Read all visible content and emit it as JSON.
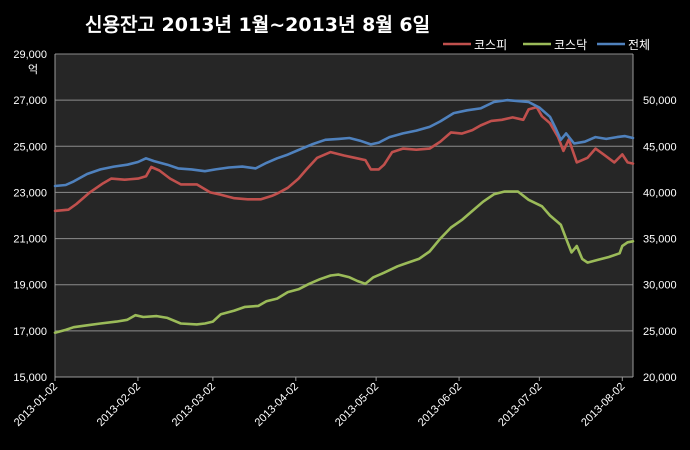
{
  "chart_data": {
    "type": "line",
    "title": "신용잔고 2013년 1월~2013년 8월 6일",
    "y_left_unit": "억",
    "x_tick_labels": [
      "2013-01-02",
      "2013-02-02",
      "2013-03-02",
      "2013-04-02",
      "2013-05-02",
      "2013-06-02",
      "2013-07-02",
      "2013-08-02"
    ],
    "x_range": [
      "2013-01-02",
      "2013-08-06"
    ],
    "y_left": {
      "range": [
        15000,
        29000
      ],
      "ticks": [
        "15,000",
        "17,000",
        "19,000",
        "21,000",
        "23,000",
        "25,000",
        "27,000",
        "29,000"
      ],
      "tick_values": [
        15000,
        17000,
        19000,
        21000,
        23000,
        25000,
        27000,
        29000
      ]
    },
    "y_right": {
      "range": [
        20000,
        55000
      ],
      "ticks": [
        "20,000",
        "25,000",
        "30,000",
        "35,000",
        "40,000",
        "45,000",
        "50,000"
      ],
      "tick_values": [
        20000,
        25000,
        30000,
        35000,
        40000,
        45000,
        50000
      ]
    },
    "grid": true,
    "legend_position": "top-right",
    "series": [
      {
        "name": "코스피",
        "axis": "left",
        "color": "#c0504d",
        "points": [
          [
            "2013-01-02",
            22200
          ],
          [
            "2013-01-07",
            22250
          ],
          [
            "2013-01-10",
            22500
          ],
          [
            "2013-01-15",
            23000
          ],
          [
            "2013-01-20",
            23400
          ],
          [
            "2013-01-23",
            23600
          ],
          [
            "2013-01-28",
            23550
          ],
          [
            "2013-02-02",
            23600
          ],
          [
            "2013-02-05",
            23700
          ],
          [
            "2013-02-07",
            24100
          ],
          [
            "2013-02-10",
            23950
          ],
          [
            "2013-02-14",
            23600
          ],
          [
            "2013-02-18",
            23350
          ],
          [
            "2013-02-24",
            23350
          ],
          [
            "2013-03-01",
            23000
          ],
          [
            "2013-03-05",
            22900
          ],
          [
            "2013-03-10",
            22750
          ],
          [
            "2013-03-15",
            22700
          ],
          [
            "2013-03-20",
            22700
          ],
          [
            "2013-03-24",
            22850
          ],
          [
            "2013-03-26",
            22950
          ],
          [
            "2013-03-30",
            23200
          ],
          [
            "2013-04-03",
            23600
          ],
          [
            "2013-04-06",
            24000
          ],
          [
            "2013-04-10",
            24500
          ],
          [
            "2013-04-15",
            24750
          ],
          [
            "2013-04-20",
            24600
          ],
          [
            "2013-04-24",
            24500
          ],
          [
            "2013-04-28",
            24400
          ],
          [
            "2013-04-30",
            24000
          ],
          [
            "2013-05-03",
            24000
          ],
          [
            "2013-05-05",
            24200
          ],
          [
            "2013-05-08",
            24750
          ],
          [
            "2013-05-12",
            24900
          ],
          [
            "2013-05-17",
            24850
          ],
          [
            "2013-05-22",
            24900
          ],
          [
            "2013-05-26",
            25200
          ],
          [
            "2013-05-30",
            25600
          ],
          [
            "2013-06-03",
            25550
          ],
          [
            "2013-06-07",
            25700
          ],
          [
            "2013-06-10",
            25900
          ],
          [
            "2013-06-14",
            26100
          ],
          [
            "2013-06-18",
            26150
          ],
          [
            "2013-06-22",
            26250
          ],
          [
            "2013-06-26",
            26150
          ],
          [
            "2013-06-28",
            26600
          ],
          [
            "2013-07-01",
            26700
          ],
          [
            "2013-07-03",
            26300
          ],
          [
            "2013-07-06",
            26000
          ],
          [
            "2013-07-09",
            25400
          ],
          [
            "2013-07-11",
            24800
          ],
          [
            "2013-07-13",
            25300
          ],
          [
            "2013-07-16",
            24300
          ],
          [
            "2013-07-20",
            24500
          ],
          [
            "2013-07-23",
            24900
          ],
          [
            "2013-07-26",
            24650
          ],
          [
            "2013-07-30",
            24300
          ],
          [
            "2013-08-02",
            24650
          ],
          [
            "2013-08-04",
            24300
          ],
          [
            "2013-08-06",
            24250
          ]
        ]
      },
      {
        "name": "코스닥",
        "axis": "right",
        "color": "#9bbb59",
        "points": [
          [
            "2013-01-02",
            24800
          ],
          [
            "2013-01-06",
            25100
          ],
          [
            "2013-01-09",
            25400
          ],
          [
            "2013-01-14",
            25600
          ],
          [
            "2013-01-19",
            25800
          ],
          [
            "2013-01-25",
            26000
          ],
          [
            "2013-01-29",
            26200
          ],
          [
            "2013-02-01",
            26700
          ],
          [
            "2013-02-04",
            26500
          ],
          [
            "2013-02-09",
            26600
          ],
          [
            "2013-02-13",
            26400
          ],
          [
            "2013-02-18",
            25800
          ],
          [
            "2013-02-24",
            25700
          ],
          [
            "2013-02-27",
            25800
          ],
          [
            "2013-03-02",
            26000
          ],
          [
            "2013-03-05",
            26800
          ],
          [
            "2013-03-10",
            27200
          ],
          [
            "2013-03-14",
            27600
          ],
          [
            "2013-03-19",
            27700
          ],
          [
            "2013-03-22",
            28200
          ],
          [
            "2013-03-26",
            28500
          ],
          [
            "2013-03-30",
            29200
          ],
          [
            "2013-04-03",
            29500
          ],
          [
            "2013-04-07",
            30100
          ],
          [
            "2013-04-11",
            30600
          ],
          [
            "2013-04-15",
            31000
          ],
          [
            "2013-04-18",
            31100
          ],
          [
            "2013-04-22",
            30800
          ],
          [
            "2013-04-25",
            30400
          ],
          [
            "2013-04-28",
            30100
          ],
          [
            "2013-05-01",
            30800
          ],
          [
            "2013-05-05",
            31300
          ],
          [
            "2013-05-10",
            32000
          ],
          [
            "2013-05-13",
            32300
          ],
          [
            "2013-05-18",
            32800
          ],
          [
            "2013-05-22",
            33600
          ],
          [
            "2013-05-26",
            35000
          ],
          [
            "2013-05-30",
            36200
          ],
          [
            "2013-06-03",
            37000
          ],
          [
            "2013-06-07",
            38000
          ],
          [
            "2013-06-11",
            39000
          ],
          [
            "2013-06-15",
            39800
          ],
          [
            "2013-06-19",
            40100
          ],
          [
            "2013-06-24",
            40100
          ],
          [
            "2013-06-28",
            39200
          ],
          [
            "2013-07-03",
            38500
          ],
          [
            "2013-07-06",
            37500
          ],
          [
            "2013-07-10",
            36500
          ],
          [
            "2013-07-12",
            35000
          ],
          [
            "2013-07-14",
            33500
          ],
          [
            "2013-07-16",
            34200
          ],
          [
            "2013-07-18",
            32800
          ],
          [
            "2013-07-20",
            32400
          ],
          [
            "2013-07-24",
            32700
          ],
          [
            "2013-07-28",
            33000
          ],
          [
            "2013-08-01",
            33400
          ],
          [
            "2013-08-02",
            34200
          ],
          [
            "2013-08-04",
            34600
          ],
          [
            "2013-08-06",
            34700
          ]
        ]
      },
      {
        "name": "전체",
        "axis": "right",
        "color": "#4f81bd",
        "points": [
          [
            "2013-01-02",
            40700
          ],
          [
            "2013-01-06",
            40800
          ],
          [
            "2013-01-09",
            41200
          ],
          [
            "2013-01-14",
            42000
          ],
          [
            "2013-01-19",
            42500
          ],
          [
            "2013-01-24",
            42800
          ],
          [
            "2013-01-29",
            43000
          ],
          [
            "2013-02-02",
            43300
          ],
          [
            "2013-02-05",
            43700
          ],
          [
            "2013-02-08",
            43400
          ],
          [
            "2013-02-13",
            43000
          ],
          [
            "2013-02-17",
            42600
          ],
          [
            "2013-02-22",
            42500
          ],
          [
            "2013-02-27",
            42300
          ],
          [
            "2013-03-03",
            42500
          ],
          [
            "2013-03-08",
            42700
          ],
          [
            "2013-03-13",
            42800
          ],
          [
            "2013-03-18",
            42600
          ],
          [
            "2013-03-22",
            43200
          ],
          [
            "2013-03-26",
            43700
          ],
          [
            "2013-03-30",
            44100
          ],
          [
            "2013-04-03",
            44600
          ],
          [
            "2013-04-08",
            45200
          ],
          [
            "2013-04-13",
            45700
          ],
          [
            "2013-04-18",
            45800
          ],
          [
            "2013-04-22",
            45900
          ],
          [
            "2013-04-26",
            45600
          ],
          [
            "2013-04-30",
            45200
          ],
          [
            "2013-05-03",
            45400
          ],
          [
            "2013-05-07",
            46000
          ],
          [
            "2013-05-12",
            46400
          ],
          [
            "2013-05-17",
            46700
          ],
          [
            "2013-05-22",
            47100
          ],
          [
            "2013-05-26",
            47700
          ],
          [
            "2013-05-31",
            48600
          ],
          [
            "2013-06-05",
            48900
          ],
          [
            "2013-06-10",
            49100
          ],
          [
            "2013-06-15",
            49800
          ],
          [
            "2013-06-20",
            50000
          ],
          [
            "2013-06-24",
            49900
          ],
          [
            "2013-06-28",
            49800
          ],
          [
            "2013-07-02",
            49200
          ],
          [
            "2013-07-06",
            48200
          ],
          [
            "2013-07-08",
            47000
          ],
          [
            "2013-07-10",
            45700
          ],
          [
            "2013-07-12",
            46400
          ],
          [
            "2013-07-15",
            45300
          ],
          [
            "2013-07-19",
            45500
          ],
          [
            "2013-07-23",
            46000
          ],
          [
            "2013-07-27",
            45800
          ],
          [
            "2013-07-31",
            46000
          ],
          [
            "2013-08-03",
            46100
          ],
          [
            "2013-08-06",
            45900
          ]
        ]
      }
    ]
  }
}
